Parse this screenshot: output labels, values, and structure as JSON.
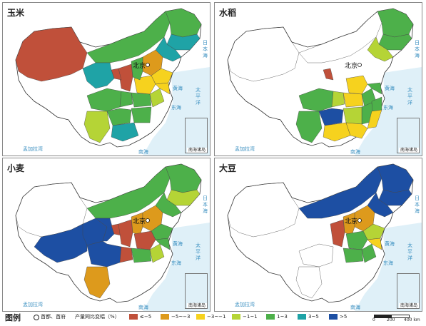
{
  "panels": [
    {
      "id": "corn",
      "title": "玉米"
    },
    {
      "id": "rice",
      "title": "水稻"
    },
    {
      "id": "wheat",
      "title": "小麦"
    },
    {
      "id": "soy",
      "title": "大豆"
    }
  ],
  "capital_label": "北京",
  "sea_labels": {
    "yellow_sea": "黄海",
    "east_sea": "东海",
    "pacific": "太平洋",
    "japan_sea": "日本海",
    "bengal": "孟加拉湾",
    "south_sea": "南海"
  },
  "inset_label": "南海诸岛",
  "legend": {
    "title": "图例",
    "capital_symbol_label": "首都、首府",
    "header": "产量同比变幅（%）",
    "classes": [
      {
        "label": "≤−5",
        "color": "#c0503a"
      },
      {
        "label": "−5~−3",
        "color": "#dd9a1c"
      },
      {
        "label": "−3~−1",
        "color": "#f6d21e"
      },
      {
        "label": "−1~1",
        "color": "#b5d436"
      },
      {
        "label": "1~3",
        "color": "#4db04a"
      },
      {
        "label": "3~5",
        "color": "#1fa3a6"
      },
      {
        "label": ">5",
        "color": "#1d4fa3"
      }
    ],
    "scale": {
      "t0": "0",
      "t1": "200",
      "t2": "400 km"
    }
  },
  "regions": {
    "corn": {
      "XJ": "#c0503a",
      "NM": "#4db04a",
      "HLJ": "#4db04a",
      "JL": "#1fa3a6",
      "LN": "#1fa3a6",
      "HB": "#dd9a1c",
      "SD": "#f6d21e",
      "HN": "#f6d21e",
      "SX": "#4db04a",
      "SN": "#c0503a",
      "NX": "#c0503a",
      "GS": "#1fa3a6",
      "SC": "#4db04a",
      "CQ": "#4db04a",
      "YN": "#b5d436",
      "GZ": "#4db04a",
      "GX": "#1fa3a6",
      "AH": "#b5d436",
      "JS": "#f6d21e",
      "HUB": "#4db04a",
      "HUN": "#4db04a"
    },
    "rice": {
      "HLJ": "#4db04a",
      "JL": "#4db04a",
      "LN": "#b5d436",
      "NX": "#c0503a",
      "SC": "#4db04a",
      "CQ": "#b5d436",
      "GZ": "#1d4fa3",
      "YN": "#4db04a",
      "GX": "#f6d21e",
      "GD": "#f6d21e",
      "FJ": "#f6d21e",
      "HUN": "#b5d436",
      "HUB": "#f6d21e",
      "JX": "#4db04a",
      "ZJ": "#4db04a",
      "AH": "#4db04a",
      "JS": "#4db04a",
      "HN": "#f6d21e"
    },
    "wheat": {
      "HLJ": "#4db04a",
      "NM": "#4db04a",
      "GS": "#1d4fa3",
      "QH": "#1d4fa3",
      "XZ": "#1d4fa3",
      "SC": "#1d4fa3",
      "NX": "#c0503a",
      "SN": "#c0503a",
      "SX": "#dd9a1c",
      "HB": "#dd9a1c",
      "SD": "#4db04a",
      "HN": "#c0503a",
      "AH": "#b5d436",
      "JS": "#4db04a",
      "HUB": "#4db04a",
      "CQ": "#c0503a",
      "YN": "#dd9a1c",
      "JL": "#b5d436",
      "LN": "#4db04a"
    },
    "soy": {
      "HLJ": "#1d4fa3",
      "NM": "#1d4fa3",
      "JL": "#1d4fa3",
      "LN": "#1d4fa3",
      "HB": "#dd9a1c",
      "SD": "#b5d436",
      "HN": "#4db04a",
      "AH": "#4db04a",
      "JS": "#f6d21e",
      "SX": "#dd9a1c",
      "SN": "#c0503a",
      "HUB": "#4db04a"
    }
  }
}
